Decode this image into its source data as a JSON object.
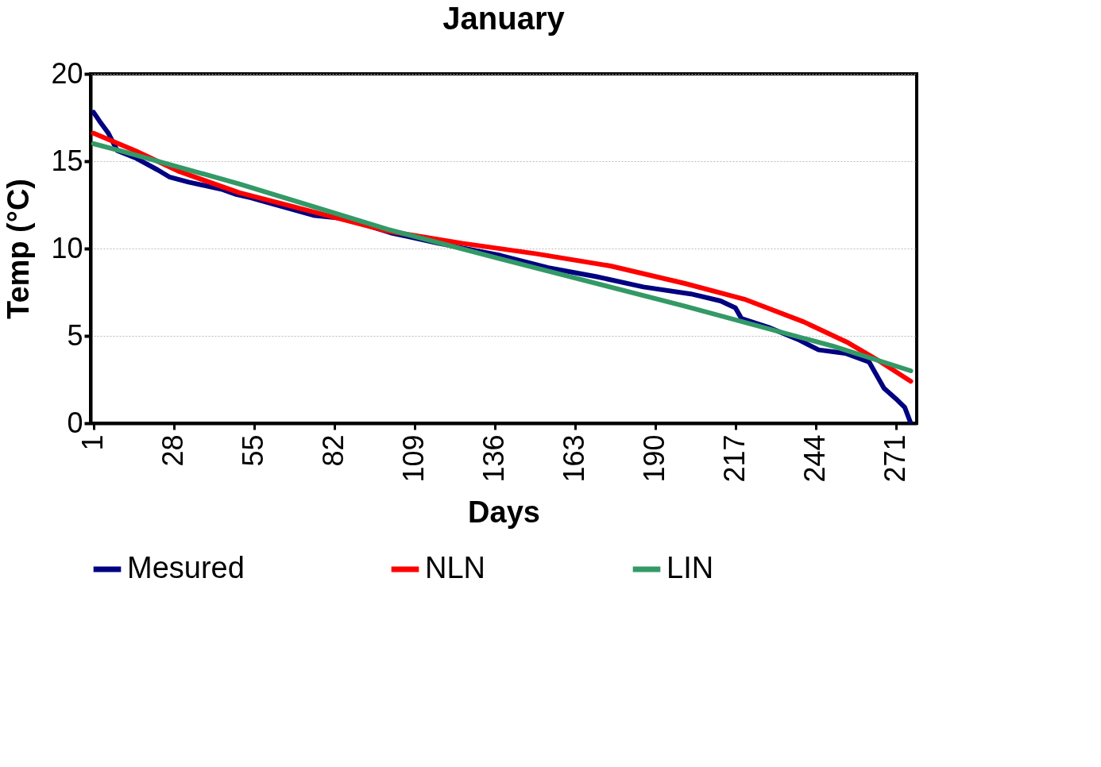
{
  "chart_data": {
    "type": "line",
    "title": "January",
    "xlabel": "Days",
    "ylabel": "Temp (°C)",
    "xlim": [
      0,
      278
    ],
    "xticks": [
      1,
      28,
      55,
      82,
      109,
      136,
      163,
      190,
      217,
      244,
      271
    ],
    "ylim": [
      0,
      20
    ],
    "yticks": [
      0,
      5,
      10,
      15,
      20
    ],
    "grid": "y",
    "legend": "bottom",
    "marker": "none",
    "line_style": "solid",
    "series": [
      {
        "name": "Mesured",
        "color": "#000080",
        "x": [
          1,
          3,
          6,
          9,
          15,
          22.6,
          26.5,
          33,
          44,
          49,
          54,
          75,
          86,
          101,
          117,
          138,
          154,
          170,
          186,
          202,
          212,
          217,
          219,
          228,
          238,
          245,
          254,
          262,
          264,
          267,
          271,
          274,
          276
        ],
        "values": [
          17.8,
          17.3,
          16.6,
          15.6,
          15.2,
          14.5,
          14.1,
          13.8,
          13.4,
          13.1,
          12.9,
          11.9,
          11.7,
          10.9,
          10.3,
          9.6,
          8.9,
          8.4,
          7.8,
          7.4,
          7.0,
          6.6,
          6.0,
          5.5,
          4.8,
          4.2,
          4.0,
          3.5,
          2.9,
          2.0,
          1.4,
          0.9,
          0
        ]
      },
      {
        "name": "NLN",
        "color": "#ff0000",
        "x": [
          1,
          15,
          30,
          50,
          75,
          100,
          125,
          150,
          175,
          200,
          220,
          240,
          255,
          265,
          276
        ],
        "values": [
          16.6,
          15.6,
          14.4,
          13.2,
          12.1,
          11.0,
          10.3,
          9.7,
          9.0,
          8.0,
          7.1,
          5.8,
          4.6,
          3.6,
          2.4
        ]
      },
      {
        "name": "LIN",
        "color": "#339966",
        "x": [
          1,
          10,
          50,
          100,
          138,
          200,
          250,
          276
        ],
        "values": [
          16.0,
          15.6,
          13.7,
          11.1,
          9.4,
          6.7,
          4.4,
          3.0
        ]
      }
    ]
  }
}
